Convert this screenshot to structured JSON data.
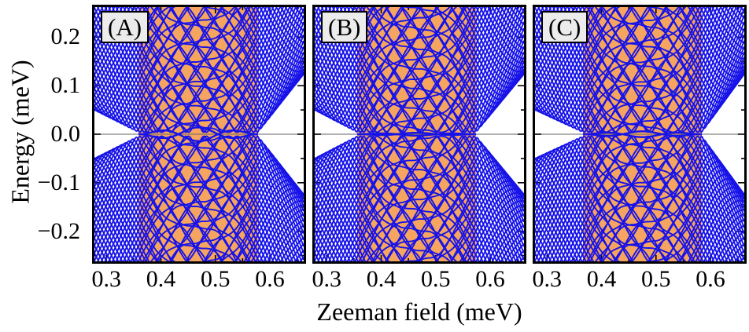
{
  "chart_data": {
    "type": "line",
    "title": "",
    "xlabel": "Zeeman field (meV)",
    "ylabel": "Energy  (meV)",
    "xlim": [
      0.278,
      0.662
    ],
    "ylim": [
      -0.262,
      0.262
    ],
    "xticks": [
      0.3,
      0.4,
      0.5,
      0.6
    ],
    "xtick_labels": [
      "0.3",
      "0.4",
      "0.5",
      "0.6"
    ],
    "xticks_minor": [
      0.35,
      0.45,
      0.55,
      0.65
    ],
    "yticks": [
      0.2,
      0.1,
      0.0,
      -0.1,
      -0.2
    ],
    "ytick_labels": [
      "0.2",
      "0.1",
      "0.0",
      "−0.1",
      "−0.2"
    ],
    "yticks_minor": [
      0.25,
      0.15,
      0.05,
      -0.05,
      -0.15,
      -0.25
    ],
    "line_color": "#1713E8",
    "shade_color": "#F5A55F",
    "zero_line_color": "#666666",
    "panel_label_bg": "#ECECEC",
    "panels": [
      {
        "label": "(A)",
        "topological_region": [
          0.359,
          0.578
        ],
        "gap_close_field": 0.359,
        "gap_reopen_field": 0.578,
        "zero_mode_oscillation_amp": 0.014,
        "seed": 0.7
      },
      {
        "label": "(B)",
        "topological_region": [
          0.356,
          0.574
        ],
        "gap_close_field": 0.356,
        "gap_reopen_field": 0.574,
        "zero_mode_oscillation_amp": 0.003,
        "seed": 2.9
      },
      {
        "label": "(C)",
        "topological_region": [
          0.366,
          0.584
        ],
        "gap_close_field": 0.366,
        "gap_reopen_field": 0.584,
        "zero_mode_oscillation_amp": 0.006,
        "seed": 5.1
      }
    ],
    "spectrum_model": {
      "level_intercept_min": -0.32,
      "level_intercept_step": 0.016,
      "level_count": 86,
      "zeeman_slope": 2.3,
      "left_gap_at_xmin": 0.05,
      "in_gap": 0.004,
      "right_gap_at_xmax": 0.12,
      "orange_slope_softening": 0.55,
      "wiggle_amp": 0.016,
      "wiggle_wavelength": 0.095
    }
  }
}
